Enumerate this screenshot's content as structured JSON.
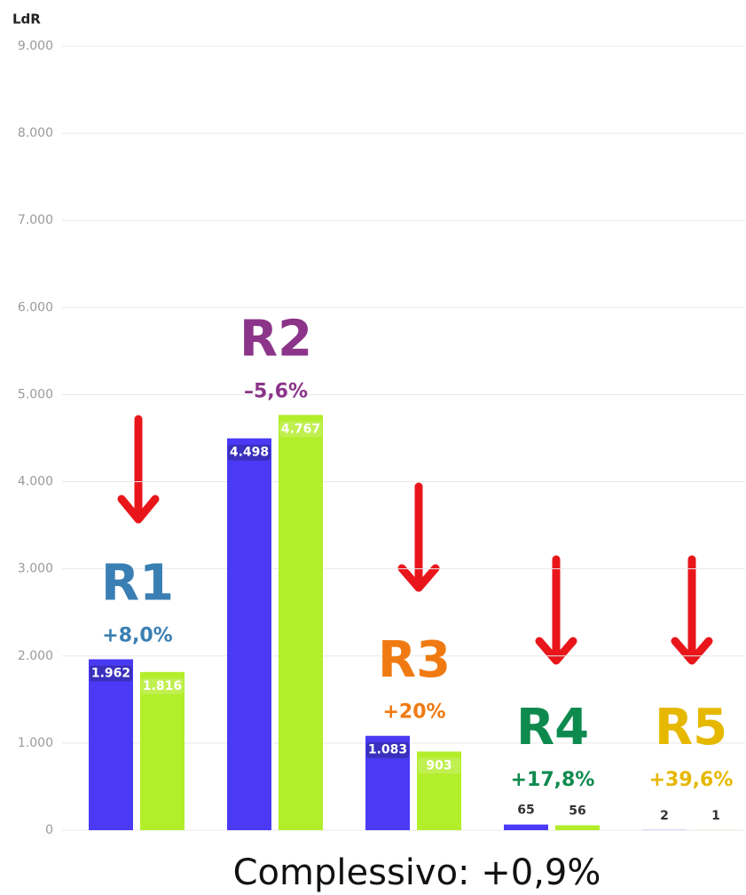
{
  "chart_data": {
    "type": "bar",
    "ylabel": "LdR",
    "categories": [
      "R1",
      "R2",
      "R3",
      "R4",
      "R5"
    ],
    "category_colors": [
      "#3a7fb3",
      "#8b3489",
      "#f07a12",
      "#0f8a4f",
      "#e6b800"
    ],
    "changes": [
      "+8,0%",
      "–5,6%",
      "+20%",
      "+17,8%",
      "+39,6%"
    ],
    "series": [
      {
        "color": "#4a3af5",
        "values": [
          1962,
          4498,
          1083,
          65,
          2
        ],
        "value_labels": [
          "1.962",
          "4.498",
          "1.083",
          "65",
          "2"
        ]
      },
      {
        "color": "#b2ee2a",
        "values": [
          1816,
          4767,
          903,
          56,
          1
        ],
        "value_labels": [
          "1.816",
          "4.767",
          "903",
          "56",
          "1"
        ]
      }
    ],
    "ylim": [
      0,
      9000
    ],
    "yticks": [
      0,
      {
        "value": 1000,
        "label": "1.000"
      },
      {
        "value": 2000,
        "label": "2.000"
      },
      {
        "value": 3000,
        "label": "3.000"
      },
      {
        "value": 4000,
        "label": "4.000"
      },
      {
        "value": 5000,
        "label": "5.000"
      },
      {
        "value": 6000,
        "label": "6.000"
      },
      {
        "value": 7000,
        "label": "7.000"
      },
      {
        "value": 8000,
        "label": "8.000"
      },
      {
        "value": 9000,
        "label": "9.000"
      }
    ],
    "grid": true,
    "footer": "Complessivo: +0,9%"
  }
}
